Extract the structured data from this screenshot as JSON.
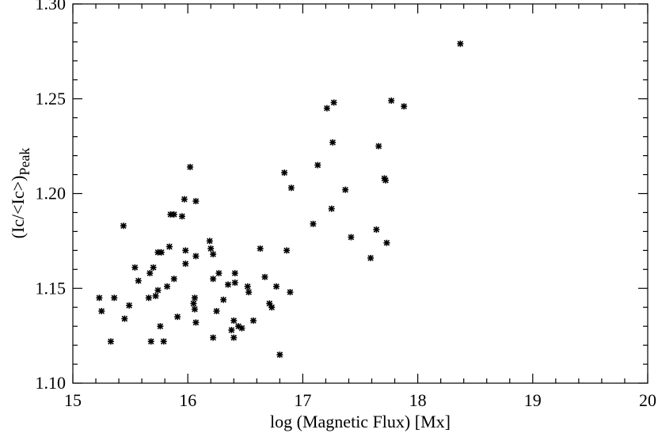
{
  "chart_data": {
    "type": "scatter",
    "title": "",
    "xlabel": "log (Magnetic Flux) [Mx]",
    "ylabel_main": "(Ic/<Ic>)",
    "ylabel_sub": "Peak",
    "xlim": [
      15,
      20
    ],
    "ylim": [
      1.1,
      1.3
    ],
    "xticks": [
      15,
      16,
      17,
      18,
      19,
      20
    ],
    "xtick_labels": [
      "15",
      "16",
      "17",
      "18",
      "19",
      "20"
    ],
    "yticks": [
      1.1,
      1.15,
      1.2,
      1.25,
      1.3
    ],
    "ytick_labels": [
      "1.10",
      "1.15",
      "1.20",
      "1.25",
      "1.30"
    ],
    "marker": "asterisk",
    "color": "#000000",
    "grid": false,
    "points": [
      {
        "x": 15.23,
        "y": 1.145
      },
      {
        "x": 15.25,
        "y": 1.138
      },
      {
        "x": 15.33,
        "y": 1.122
      },
      {
        "x": 15.36,
        "y": 1.145
      },
      {
        "x": 15.44,
        "y": 1.183
      },
      {
        "x": 15.45,
        "y": 1.134
      },
      {
        "x": 15.49,
        "y": 1.141
      },
      {
        "x": 15.54,
        "y": 1.161
      },
      {
        "x": 15.57,
        "y": 1.154
      },
      {
        "x": 15.66,
        "y": 1.145
      },
      {
        "x": 15.67,
        "y": 1.158
      },
      {
        "x": 15.68,
        "y": 1.122
      },
      {
        "x": 15.7,
        "y": 1.161
      },
      {
        "x": 15.72,
        "y": 1.146
      },
      {
        "x": 15.74,
        "y": 1.169
      },
      {
        "x": 15.74,
        "y": 1.149
      },
      {
        "x": 15.76,
        "y": 1.13
      },
      {
        "x": 15.77,
        "y": 1.169
      },
      {
        "x": 15.79,
        "y": 1.122
      },
      {
        "x": 15.82,
        "y": 1.151
      },
      {
        "x": 15.84,
        "y": 1.172
      },
      {
        "x": 15.85,
        "y": 1.189
      },
      {
        "x": 15.88,
        "y": 1.189
      },
      {
        "x": 15.88,
        "y": 1.155
      },
      {
        "x": 15.91,
        "y": 1.135
      },
      {
        "x": 15.95,
        "y": 1.188
      },
      {
        "x": 15.97,
        "y": 1.197
      },
      {
        "x": 15.98,
        "y": 1.17
      },
      {
        "x": 15.98,
        "y": 1.163
      },
      {
        "x": 16.02,
        "y": 1.214
      },
      {
        "x": 16.05,
        "y": 1.142
      },
      {
        "x": 16.06,
        "y": 1.139
      },
      {
        "x": 16.06,
        "y": 1.145
      },
      {
        "x": 16.07,
        "y": 1.132
      },
      {
        "x": 16.07,
        "y": 1.167
      },
      {
        "x": 16.07,
        "y": 1.196
      },
      {
        "x": 16.19,
        "y": 1.175
      },
      {
        "x": 16.2,
        "y": 1.171
      },
      {
        "x": 16.22,
        "y": 1.124
      },
      {
        "x": 16.22,
        "y": 1.168
      },
      {
        "x": 16.22,
        "y": 1.155
      },
      {
        "x": 16.25,
        "y": 1.138
      },
      {
        "x": 16.27,
        "y": 1.158
      },
      {
        "x": 16.31,
        "y": 1.144
      },
      {
        "x": 16.35,
        "y": 1.152
      },
      {
        "x": 16.38,
        "y": 1.128
      },
      {
        "x": 16.4,
        "y": 1.133
      },
      {
        "x": 16.4,
        "y": 1.124
      },
      {
        "x": 16.41,
        "y": 1.158
      },
      {
        "x": 16.41,
        "y": 1.153
      },
      {
        "x": 16.44,
        "y": 1.13
      },
      {
        "x": 16.47,
        "y": 1.129
      },
      {
        "x": 16.52,
        "y": 1.151
      },
      {
        "x": 16.53,
        "y": 1.148
      },
      {
        "x": 16.57,
        "y": 1.133
      },
      {
        "x": 16.63,
        "y": 1.171
      },
      {
        "x": 16.67,
        "y": 1.156
      },
      {
        "x": 16.71,
        "y": 1.142
      },
      {
        "x": 16.73,
        "y": 1.14
      },
      {
        "x": 16.77,
        "y": 1.151
      },
      {
        "x": 16.8,
        "y": 1.115
      },
      {
        "x": 16.84,
        "y": 1.211
      },
      {
        "x": 16.86,
        "y": 1.17
      },
      {
        "x": 16.89,
        "y": 1.148
      },
      {
        "x": 16.9,
        "y": 1.203
      },
      {
        "x": 17.09,
        "y": 1.184
      },
      {
        "x": 17.13,
        "y": 1.215
      },
      {
        "x": 17.21,
        "y": 1.245
      },
      {
        "x": 17.25,
        "y": 1.192
      },
      {
        "x": 17.26,
        "y": 1.227
      },
      {
        "x": 17.27,
        "y": 1.248
      },
      {
        "x": 17.37,
        "y": 1.202
      },
      {
        "x": 17.42,
        "y": 1.177
      },
      {
        "x": 17.59,
        "y": 1.166
      },
      {
        "x": 17.64,
        "y": 1.181
      },
      {
        "x": 17.66,
        "y": 1.225
      },
      {
        "x": 17.71,
        "y": 1.208
      },
      {
        "x": 17.72,
        "y": 1.207
      },
      {
        "x": 17.73,
        "y": 1.174
      },
      {
        "x": 17.77,
        "y": 1.249
      },
      {
        "x": 17.88,
        "y": 1.246
      },
      {
        "x": 18.37,
        "y": 1.279
      }
    ]
  }
}
